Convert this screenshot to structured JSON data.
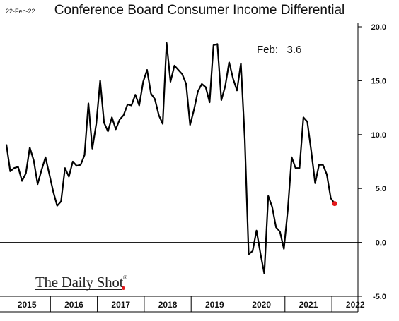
{
  "date_stamp": "22-Feb-22",
  "brand": {
    "name": "The Daily Shot",
    "reg_mark": "®"
  },
  "annotation": {
    "label": "Feb:",
    "value": "3.6"
  },
  "colors": {
    "line": "#000000",
    "last_point": "#e41a1c",
    "zero_line": "#000000"
  },
  "chart_data": {
    "type": "line",
    "title": "Conference Board Consumer Income Differential",
    "xlabel": "",
    "ylabel": "",
    "ylim": [
      -5,
      20
    ],
    "yticks": [
      "20.0",
      "15.0",
      "10.0",
      "5.0",
      "0.0",
      "-5.0"
    ],
    "ytick_values": [
      20,
      15,
      10,
      5,
      0,
      -5
    ],
    "y_axis_side": "right",
    "x_categories": [
      "2015",
      "2016",
      "2017",
      "2018",
      "2019",
      "2020",
      "2021",
      "2022"
    ],
    "grid": false,
    "legend": "none",
    "reference_line": 0,
    "series": [
      {
        "start": "2015-01",
        "frequency": "monthly",
        "values": [
          9.1,
          6.6,
          6.9,
          7.0,
          5.7,
          6.4,
          8.8,
          7.6,
          5.4,
          6.7,
          7.9,
          6.3,
          4.7,
          3.4,
          3.8,
          6.9,
          6.1,
          7.5,
          7.1,
          7.2,
          8.1,
          12.9,
          8.7,
          11.0,
          15.0,
          11.1,
          10.3,
          11.6,
          10.5,
          11.4,
          11.8,
          12.8,
          12.7,
          13.7,
          12.7,
          14.9,
          16.0,
          13.8,
          13.3,
          11.8,
          11.0,
          18.5,
          14.9,
          16.4,
          16.0,
          15.6,
          14.7,
          10.9,
          12.3,
          14.0,
          14.7,
          14.4,
          13.0,
          18.3,
          18.4,
          13.2,
          14.5,
          16.7,
          15.2,
          14.1,
          16.6,
          9.6,
          -1.1,
          -0.8,
          1.1,
          -1.0,
          -2.9,
          4.3,
          3.3,
          1.4,
          1.0,
          -0.6,
          3.0,
          7.9,
          6.9,
          6.9,
          11.6,
          11.2,
          8.5,
          5.5,
          7.2,
          7.2,
          6.3,
          4.1,
          3.6
        ]
      }
    ],
    "last_point": {
      "date": "2022-02",
      "value": 3.6
    }
  }
}
